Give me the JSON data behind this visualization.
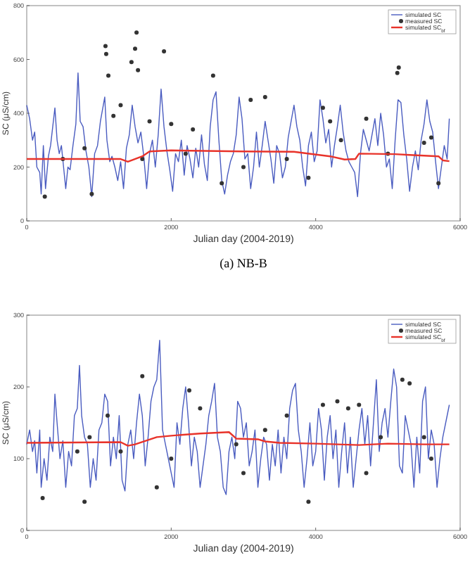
{
  "chart_data": [
    {
      "type": "scatter",
      "xlabel": "Julian day (2004-2019)",
      "ylabel": "SC (μS/cm)",
      "annotations": [
        "(a)  NB-B"
      ],
      "xlim": [
        0,
        6000
      ],
      "ylim": [
        0,
        800
      ],
      "xticks": [
        0,
        2000,
        4000,
        6000
      ],
      "yticks": [
        0,
        200,
        400,
        600,
        800
      ],
      "legend": "top right",
      "series": [
        {
          "name": "simulated SC",
          "type": "line",
          "color": "#4a5cc0",
          "x": [
            0,
            40,
            80,
            110,
            140,
            180,
            200,
            230,
            260,
            300,
            330,
            360,
            390,
            420,
            450,
            480,
            510,
            540,
            570,
            600,
            640,
            680,
            710,
            740,
            780,
            820,
            860,
            900,
            940,
            980,
            1020,
            1080,
            1110,
            1150,
            1180,
            1220,
            1260,
            1300,
            1340,
            1380,
            1420,
            1460,
            1500,
            1540,
            1580,
            1620,
            1660,
            1700,
            1740,
            1780,
            1820,
            1860,
            1900,
            1940,
            1980,
            2020,
            2060,
            2100,
            2140,
            2180,
            2220,
            2260,
            2300,
            2340,
            2380,
            2420,
            2460,
            2500,
            2540,
            2580,
            2620,
            2660,
            2700,
            2740,
            2780,
            2820,
            2860,
            2900,
            2940,
            2980,
            3020,
            3060,
            3100,
            3140,
            3180,
            3220,
            3260,
            3300,
            3340,
            3380,
            3420,
            3460,
            3500,
            3540,
            3580,
            3620,
            3660,
            3700,
            3740,
            3780,
            3820,
            3860,
            3900,
            3940,
            3980,
            4020,
            4060,
            4100,
            4140,
            4180,
            4220,
            4260,
            4300,
            4340,
            4380,
            4420,
            4460,
            4500,
            4540,
            4580,
            4620,
            4660,
            4700,
            4740,
            4780,
            4820,
            4860,
            4900,
            4940,
            4980,
            5020,
            5060,
            5100,
            5140,
            5180,
            5220,
            5260,
            5300,
            5340,
            5380,
            5420,
            5460,
            5500,
            5540,
            5580,
            5620,
            5660,
            5700,
            5740,
            5780,
            5820,
            5850
          ],
          "values": [
            430,
            380,
            300,
            330,
            200,
            180,
            100,
            280,
            120,
            240,
            280,
            350,
            420,
            300,
            250,
            280,
            200,
            120,
            200,
            190,
            280,
            360,
            550,
            370,
            350,
            260,
            200,
            90,
            250,
            280,
            370,
            460,
            300,
            220,
            240,
            200,
            150,
            220,
            120,
            270,
            320,
            430,
            350,
            290,
            330,
            240,
            120,
            250,
            300,
            200,
            320,
            490,
            350,
            260,
            190,
            110,
            250,
            220,
            300,
            170,
            280,
            230,
            160,
            270,
            200,
            320,
            210,
            150,
            350,
            450,
            480,
            300,
            150,
            100,
            170,
            220,
            250,
            320,
            460,
            380,
            230,
            250,
            120,
            200,
            330,
            200,
            280,
            370,
            300,
            230,
            140,
            280,
            250,
            160,
            200,
            310,
            370,
            430,
            350,
            300,
            200,
            130,
            280,
            330,
            220,
            260,
            450,
            380,
            290,
            340,
            200,
            280,
            350,
            430,
            330,
            260,
            220,
            200,
            180,
            90,
            250,
            340,
            300,
            260,
            320,
            380,
            280,
            400,
            320,
            200,
            230,
            120,
            300,
            450,
            440,
            320,
            230,
            110,
            200,
            260,
            190,
            300,
            360,
            450,
            370,
            330,
            220,
            120,
            200,
            280,
            230,
            380
          ]
        },
        {
          "name": "measured SC",
          "color": "#333333",
          "marker": "circle",
          "x": [
            1090,
            1100,
            1130,
            1450,
            1520,
            1500,
            1540,
            1900,
            2580,
            5150,
            5130,
            500,
            800,
            1200,
            1300,
            1700,
            2000,
            2300,
            3100,
            3300,
            3600,
            4200,
            4350,
            4700,
            5000,
            5500,
            250,
            900,
            1600,
            3900,
            2700,
            4100,
            3000,
            2200,
            5600,
            5700
          ],
          "values": [
            650,
            620,
            540,
            590,
            700,
            640,
            560,
            630,
            540,
            570,
            550,
            230,
            270,
            390,
            430,
            370,
            360,
            340,
            450,
            460,
            230,
            370,
            300,
            380,
            250,
            290,
            90,
            100,
            230,
            160,
            140,
            420,
            200,
            250,
            310,
            140
          ]
        },
        {
          "name": "simulated SC$_{bf}$",
          "type": "line",
          "color": "#e8332a",
          "x": [
            0,
            600,
            1300,
            1400,
            1600,
            1700,
            2000,
            3000,
            3700,
            4200,
            4400,
            4550,
            4600,
            5100,
            5300,
            5700,
            5760,
            5850
          ],
          "values": [
            230,
            230,
            230,
            220,
            240,
            258,
            262,
            258,
            257,
            240,
            228,
            230,
            250,
            248,
            245,
            240,
            225,
            222
          ]
        }
      ]
    },
    {
      "type": "scatter",
      "xlabel": "Julian day (2004-2019)",
      "ylabel": "SC (μS/cm)",
      "xlim": [
        0,
        6000
      ],
      "ylim": [
        0,
        300
      ],
      "xticks": [
        0,
        2000,
        4000,
        6000
      ],
      "yticks": [
        0,
        100,
        200,
        300
      ],
      "legend": "top right",
      "series": [
        {
          "name": "simulated SC",
          "type": "line",
          "color": "#4a5cc0",
          "x": [
            0,
            40,
            80,
            110,
            140,
            180,
            200,
            240,
            280,
            320,
            360,
            390,
            420,
            460,
            500,
            540,
            580,
            620,
            660,
            700,
            730,
            760,
            800,
            840,
            880,
            920,
            960,
            1000,
            1040,
            1080,
            1120,
            1160,
            1200,
            1240,
            1280,
            1320,
            1360,
            1400,
            1440,
            1480,
            1520,
            1560,
            1600,
            1640,
            1680,
            1720,
            1760,
            1800,
            1840,
            1880,
            1920,
            1960,
            2000,
            2040,
            2080,
            2120,
            2160,
            2200,
            2240,
            2280,
            2320,
            2360,
            2400,
            2440,
            2480,
            2520,
            2560,
            2600,
            2640,
            2680,
            2720,
            2760,
            2800,
            2840,
            2880,
            2920,
            2960,
            3000,
            3040,
            3080,
            3120,
            3160,
            3200,
            3240,
            3280,
            3320,
            3360,
            3400,
            3440,
            3480,
            3520,
            3560,
            3600,
            3640,
            3680,
            3720,
            3760,
            3800,
            3840,
            3880,
            3920,
            3960,
            4000,
            4040,
            4080,
            4120,
            4160,
            4200,
            4240,
            4280,
            4320,
            4360,
            4400,
            4440,
            4480,
            4520,
            4560,
            4600,
            4640,
            4680,
            4720,
            4760,
            4800,
            4840,
            4880,
            4920,
            4960,
            5000,
            5040,
            5080,
            5120,
            5160,
            5200,
            5240,
            5280,
            5320,
            5360,
            5400,
            5440,
            5480,
            5520,
            5560,
            5600,
            5640,
            5680,
            5720,
            5760,
            5800,
            5850
          ],
          "values": [
            120,
            140,
            110,
            125,
            80,
            140,
            60,
            100,
            70,
            130,
            110,
            190,
            150,
            100,
            125,
            60,
            110,
            90,
            160,
            170,
            230,
            160,
            130,
            120,
            60,
            100,
            70,
            140,
            150,
            190,
            180,
            90,
            130,
            100,
            160,
            70,
            55,
            120,
            140,
            100,
            150,
            190,
            160,
            90,
            130,
            180,
            200,
            210,
            265,
            140,
            120,
            100,
            80,
            60,
            150,
            120,
            170,
            200,
            150,
            90,
            130,
            110,
            60,
            90,
            120,
            160,
            180,
            205,
            130,
            110,
            60,
            50,
            110,
            130,
            100,
            180,
            170,
            130,
            150,
            90,
            110,
            140,
            60,
            100,
            130,
            120,
            70,
            120,
            90,
            140,
            80,
            130,
            100,
            170,
            195,
            205,
            140,
            110,
            60,
            100,
            150,
            90,
            110,
            170,
            140,
            70,
            130,
            160,
            100,
            140,
            60,
            110,
            150,
            80,
            130,
            60,
            100,
            140,
            170,
            120,
            160,
            90,
            150,
            210,
            110,
            150,
            170,
            130,
            180,
            225,
            200,
            90,
            80,
            160,
            140,
            120,
            60,
            130,
            80,
            180,
            200,
            100,
            140,
            120,
            60,
            100,
            130,
            150,
            175
          ]
        },
        {
          "name": "measured SC",
          "color": "#333333",
          "marker": "circle",
          "x": [
            220,
            800,
            870,
            1120,
            1600,
            2250,
            2400,
            3900,
            4100,
            4300,
            4600,
            5200,
            5300,
            1300,
            2900,
            3300,
            3600,
            4900,
            5600,
            700,
            2000,
            4450,
            5500,
            3000,
            1800,
            4700
          ],
          "values": [
            45,
            40,
            130,
            160,
            215,
            195,
            170,
            40,
            175,
            180,
            175,
            210,
            205,
            110,
            120,
            140,
            160,
            130,
            100,
            110,
            100,
            170,
            130,
            80,
            60,
            80
          ]
        },
        {
          "name": "simulated SC$_{bf}$",
          "type": "line",
          "color": "#e8332a",
          "x": [
            0,
            1300,
            1400,
            1500,
            1800,
            2000,
            2400,
            2800,
            2900,
            3200,
            3300,
            3500,
            4000,
            4600,
            5000,
            5500,
            5850
          ],
          "values": [
            122,
            123,
            118,
            120,
            130,
            132,
            135,
            137,
            128,
            127,
            124,
            122,
            121,
            119,
            121,
            120,
            120
          ]
        }
      ]
    }
  ]
}
